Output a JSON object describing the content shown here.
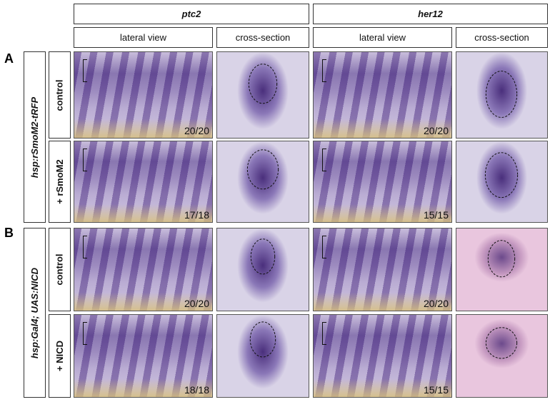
{
  "figure": {
    "panel_letters": [
      "A",
      "B"
    ],
    "genes": [
      "ptc2",
      "her12"
    ],
    "column_headers": [
      "lateral view",
      "cross-section",
      "lateral view",
      "cross-section"
    ],
    "genotypes": [
      "hsp:rSmoM2-tRFP",
      "hsp:Gal4; UAS:NICD"
    ],
    "row_labels": [
      "control",
      "+ rSmoM2",
      "control",
      "+ NICD"
    ],
    "counts": [
      [
        "20/20",
        "20/20"
      ],
      [
        "17/18",
        "15/15"
      ],
      [
        "20/20",
        "20/20"
      ],
      [
        "18/18",
        "15/15"
      ]
    ]
  }
}
